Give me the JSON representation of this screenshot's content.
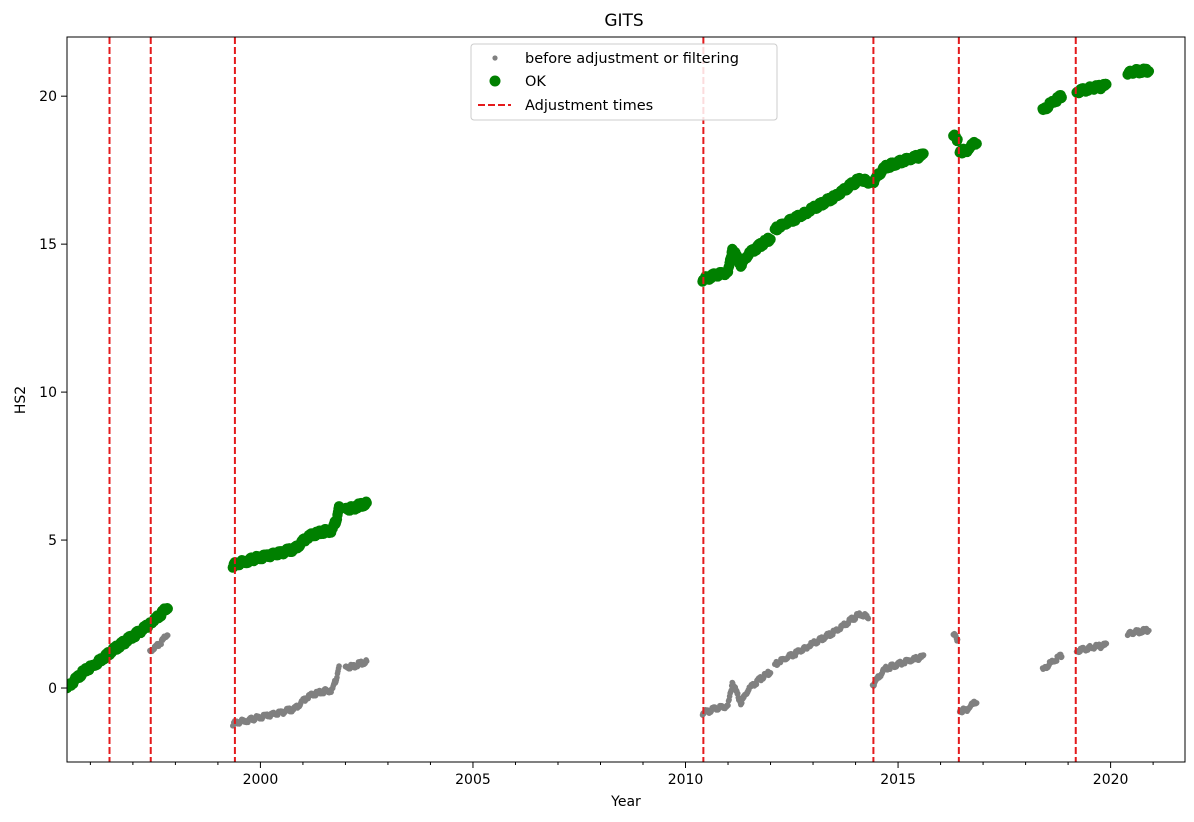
{
  "chart_data": {
    "type": "scatter",
    "title": "GITS",
    "xlabel": "Year",
    "ylabel": "HS2",
    "xlim": [
      1995.45,
      2021.75
    ],
    "ylim": [
      -2.5,
      22.0
    ],
    "x_ticks": [
      2000,
      2005,
      2010,
      2015,
      2020
    ],
    "x_tick_labels": [
      "2000",
      "2005",
      "2010",
      "2015",
      "2020"
    ],
    "y_ticks": [
      0,
      5,
      10,
      15,
      20
    ],
    "y_tick_labels": [
      "0",
      "5",
      "10",
      "15",
      "20"
    ],
    "grid": false,
    "legend_placement": "upper center",
    "colors": {
      "before": "#808080",
      "ok": "#008000",
      "adjust": "#e41a1c"
    },
    "series": [
      {
        "name": "before adjustment or filtering",
        "marker": "small-dot",
        "color": "#808080",
        "segments": [
          {
            "x": [
              1995.45,
              1995.8,
              1996.2,
              1996.5,
              1996.8,
              1997.1,
              1997.35
            ],
            "y": [
              0.0,
              0.5,
              0.9,
              1.25,
              1.55,
              1.85,
              2.1
            ]
          },
          {
            "x": [
              1997.4,
              1997.55,
              1997.7,
              1997.82
            ],
            "y": [
              1.25,
              1.4,
              1.6,
              1.85
            ]
          },
          {
            "x": [
              1999.35,
              1999.8,
              2000.3,
              2000.8,
              2001.1,
              2001.4,
              2001.7,
              2001.8,
              2001.85
            ],
            "y": [
              -1.2,
              -1.05,
              -0.9,
              -0.7,
              -0.3,
              -0.15,
              -0.05,
              0.4,
              0.8
            ]
          },
          {
            "x": [
              2002.0,
              2002.2,
              2002.5
            ],
            "y": [
              0.7,
              0.75,
              0.9
            ]
          },
          {
            "x": [
              2010.4,
              2010.7,
              2011.0,
              2011.1,
              2011.3,
              2011.5,
              2011.8,
              2012.0
            ],
            "y": [
              -0.85,
              -0.7,
              -0.6,
              0.2,
              -0.5,
              0.0,
              0.35,
              0.55
            ]
          },
          {
            "x": [
              2012.1,
              2012.5,
              2013.0,
              2013.5,
              2013.9,
              2014.1,
              2014.3
            ],
            "y": [
              0.8,
              1.1,
              1.5,
              1.9,
              2.3,
              2.5,
              2.4
            ]
          },
          {
            "x": [
              2014.4,
              2014.7,
              2015.0,
              2015.3,
              2015.6
            ],
            "y": [
              0.1,
              0.65,
              0.8,
              0.95,
              1.05
            ]
          },
          {
            "x": [
              2016.3,
              2016.4
            ],
            "y": [
              1.8,
              1.65
            ]
          },
          {
            "x": [
              2016.45,
              2016.6,
              2016.85
            ],
            "y": [
              -0.75,
              -0.75,
              -0.45
            ]
          },
          {
            "x": [
              2018.4,
              2018.6,
              2018.85
            ],
            "y": [
              0.6,
              0.85,
              1.1
            ]
          },
          {
            "x": [
              2019.2,
              2019.5,
              2019.9
            ],
            "y": [
              1.25,
              1.35,
              1.45
            ]
          },
          {
            "x": [
              2020.4,
              2020.6,
              2020.9
            ],
            "y": [
              1.8,
              1.9,
              1.95
            ]
          }
        ]
      },
      {
        "name": "OK",
        "marker": "circle",
        "color": "#008000",
        "segments": [
          {
            "x": [
              1995.45,
              1995.8,
              1996.2,
              1996.5,
              1996.8,
              1997.1,
              1997.35
            ],
            "y": [
              0.0,
              0.5,
              0.9,
              1.25,
              1.55,
              1.85,
              2.1
            ]
          },
          {
            "x": [
              1997.4,
              1997.55,
              1997.7,
              1997.82
            ],
            "y": [
              2.2,
              2.35,
              2.55,
              2.75
            ]
          },
          {
            "x": [
              1999.35,
              1999.8,
              2000.3,
              2000.8,
              2001.1,
              2001.4,
              2001.7,
              2001.8,
              2001.85
            ],
            "y": [
              4.15,
              4.35,
              4.5,
              4.7,
              5.1,
              5.25,
              5.35,
              5.75,
              6.2
            ]
          },
          {
            "x": [
              2002.0,
              2002.2,
              2002.5
            ],
            "y": [
              6.05,
              6.1,
              6.25
            ]
          },
          {
            "x": [
              2010.4,
              2010.7,
              2011.0,
              2011.1,
              2011.3,
              2011.5,
              2011.8,
              2012.0
            ],
            "y": [
              13.8,
              13.95,
              14.05,
              14.85,
              14.3,
              14.7,
              15.0,
              15.2
            ]
          },
          {
            "x": [
              2012.1,
              2012.5,
              2013.0,
              2013.5,
              2013.9,
              2014.1,
              2014.3
            ],
            "y": [
              15.5,
              15.8,
              16.2,
              16.6,
              17.0,
              17.2,
              17.1
            ]
          },
          {
            "x": [
              2014.4,
              2014.7,
              2015.0,
              2015.3,
              2015.6
            ],
            "y": [
              17.1,
              17.6,
              17.75,
              17.9,
              18.0
            ]
          },
          {
            "x": [
              2016.3,
              2016.4
            ],
            "y": [
              18.65,
              18.55
            ]
          },
          {
            "x": [
              2016.45,
              2016.6,
              2016.85
            ],
            "y": [
              18.15,
              18.15,
              18.45
            ]
          },
          {
            "x": [
              2018.4,
              2018.6,
              2018.85
            ],
            "y": [
              19.5,
              19.75,
              20.0
            ]
          },
          {
            "x": [
              2019.2,
              2019.5,
              2019.9
            ],
            "y": [
              20.15,
              20.25,
              20.35
            ]
          },
          {
            "x": [
              2020.4,
              2020.6,
              2020.9
            ],
            "y": [
              20.75,
              20.85,
              20.85
            ]
          }
        ]
      }
    ],
    "adjustment_times": {
      "name": "Adjustment times",
      "style": "dashed",
      "color": "#e41a1c",
      "x": [
        1996.45,
        1997.42,
        1999.4,
        2010.42,
        2014.42,
        2016.43,
        2019.18
      ]
    },
    "legend": [
      {
        "label": "before adjustment or filtering",
        "kind": "small-dot",
        "color": "#808080"
      },
      {
        "label": "OK",
        "kind": "circle",
        "color": "#008000"
      },
      {
        "label": "Adjustment times",
        "kind": "dashed-line",
        "color": "#e41a1c"
      }
    ]
  }
}
